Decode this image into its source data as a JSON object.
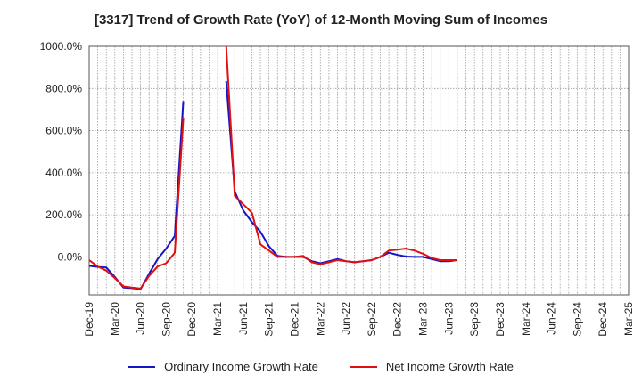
{
  "chart_data": {
    "type": "line",
    "title": "[3317]  Trend of Growth Rate (YoY) of 12-Month Moving Sum of Incomes",
    "xlabel": "",
    "ylabel": "",
    "ylim": [
      -180,
      1000
    ],
    "yticks": [
      0,
      200,
      400,
      600,
      800,
      1000
    ],
    "ytick_labels": [
      "0.0%",
      "200.0%",
      "400.0%",
      "600.0%",
      "800.0%",
      "1000.0%"
    ],
    "xtick_labels": [
      "Dec-19",
      "Mar-20",
      "Jun-20",
      "Sep-20",
      "Dec-20",
      "Mar-21",
      "Jun-21",
      "Sep-21",
      "Dec-21",
      "Mar-22",
      "Jun-22",
      "Sep-22",
      "Dec-22",
      "Mar-23",
      "Jun-23",
      "Sep-23",
      "Dec-23",
      "Mar-24",
      "Jun-24",
      "Sep-24",
      "Dec-24",
      "Mar-25"
    ],
    "grid": true,
    "legend_position": "bottom",
    "series": [
      {
        "name": "Ordinary Income Growth Rate",
        "color": "#1515c8",
        "values": [
          -42,
          -47,
          -50,
          -95,
          -145,
          -148,
          -153,
          -80,
          -10,
          40,
          100,
          740,
          null,
          null,
          null,
          null,
          835,
          310,
          220,
          165,
          120,
          50,
          5,
          0,
          0,
          0,
          -20,
          -30,
          -20,
          -10,
          -20,
          -25,
          -20,
          -15,
          0,
          20,
          10,
          2,
          0,
          0,
          -10,
          -20,
          -20,
          -15
        ]
      },
      {
        "name": "Net Income Growth Rate",
        "color": "#e01010",
        "values": [
          -15,
          -45,
          -65,
          -100,
          -140,
          -145,
          -150,
          -90,
          -45,
          -30,
          20,
          660,
          null,
          null,
          null,
          null,
          1000,
          290,
          250,
          210,
          60,
          30,
          0,
          0,
          0,
          5,
          -25,
          -35,
          -25,
          -15,
          -20,
          -25,
          -20,
          -15,
          0,
          30,
          35,
          40,
          30,
          15,
          -5,
          -15,
          -15,
          -15
        ]
      }
    ]
  }
}
